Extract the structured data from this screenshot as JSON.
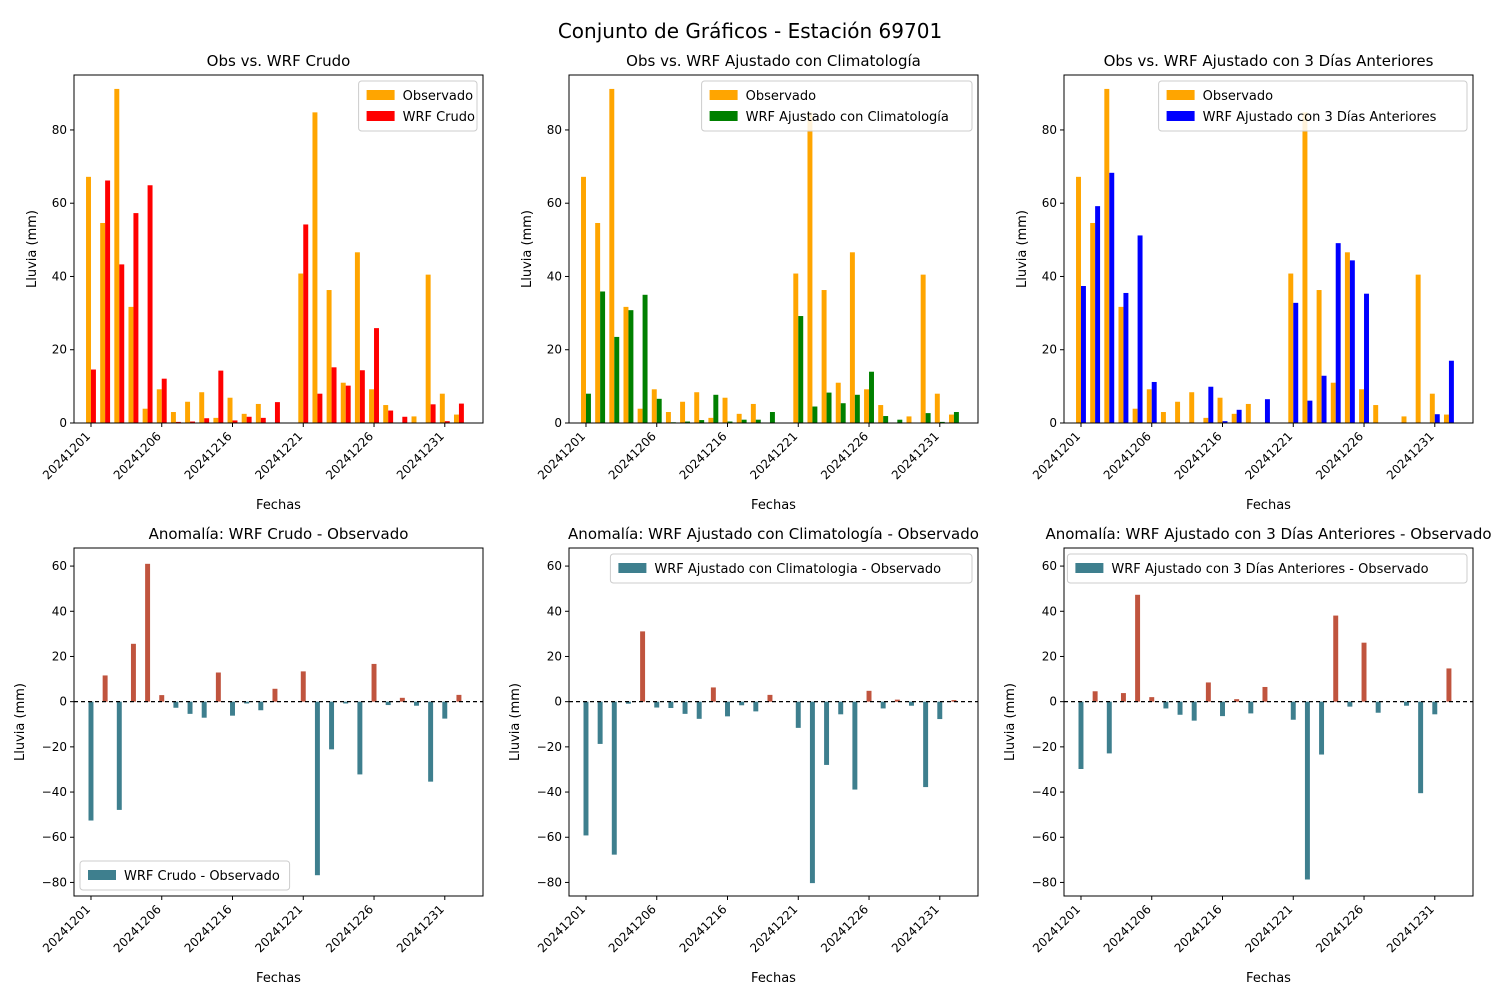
{
  "figure": {
    "suptitle": "Conjunto de Gráficos - Estación 69701"
  },
  "colors": {
    "observed": "#FFA500",
    "wrf_crudo": "#FF0000",
    "wrf_clim": "#008000",
    "wrf_3dias": "#0000FF",
    "anom_negative": "#3E7F8E",
    "anom_positive": "#C0543E"
  },
  "chart_data": [
    {
      "type": "bar",
      "title": "Obs vs. WRF Crudo",
      "xlabel": "Fechas",
      "ylabel": "Lluvia (mm)",
      "ylim": [
        0,
        95
      ],
      "yticks": [
        0,
        20,
        40,
        60,
        80
      ],
      "x_ticks": [
        "20241201",
        "20241206",
        "20241216",
        "20241221",
        "20241226",
        "20241231"
      ],
      "legend_position": "upper right",
      "series": [
        {
          "name": "Observado",
          "color": "#FFA500",
          "values": [
            67.2,
            54.6,
            91.2,
            31.7,
            3.9,
            9.2,
            3.0,
            5.8,
            8.4,
            1.4,
            6.9,
            2.5,
            5.2,
            0,
            0,
            40.8,
            84.8,
            36.3,
            11.0,
            46.6,
            9.2,
            4.9,
            0,
            1.8,
            40.5,
            8.0,
            2.3
          ]
        },
        {
          "name": "WRF Crudo",
          "color": "#FF0000",
          "values": [
            14.6,
            66.2,
            43.3,
            57.3,
            64.9,
            12.1,
            0.3,
            0.4,
            1.3,
            14.3,
            0.7,
            1.7,
            1.4,
            5.7,
            0,
            54.2,
            8.0,
            15.2,
            10.2,
            14.4,
            25.9,
            3.4,
            1.7,
            0,
            5.1,
            0.5,
            5.3
          ]
        }
      ]
    },
    {
      "type": "bar",
      "title": "Obs vs. WRF Ajustado con Climatología",
      "xlabel": "Fechas",
      "ylabel": "Lluvia (mm)",
      "ylim": [
        0,
        95
      ],
      "yticks": [
        0,
        20,
        40,
        60,
        80
      ],
      "x_ticks": [
        "20241201",
        "20241206",
        "20241216",
        "20241221",
        "20241226",
        "20241231"
      ],
      "legend_position": "upper right",
      "series": [
        {
          "name": "Observado",
          "color": "#FFA500",
          "values": [
            67.2,
            54.6,
            91.2,
            31.7,
            3.9,
            9.2,
            3.0,
            5.8,
            8.4,
            1.4,
            6.9,
            2.5,
            5.2,
            0,
            0,
            40.8,
            84.8,
            36.3,
            11.0,
            46.6,
            9.2,
            4.9,
            0,
            1.8,
            40.5,
            8.0,
            2.3
          ]
        },
        {
          "name": "WRF Ajustado con Climatología",
          "color": "#008000",
          "values": [
            8.0,
            35.9,
            23.5,
            30.8,
            35.0,
            6.6,
            0.2,
            0.4,
            0.8,
            7.7,
            0.4,
            0.9,
            0.9,
            3.0,
            0,
            29.2,
            4.5,
            8.3,
            5.4,
            7.7,
            14.0,
            1.9,
            0.9,
            0,
            2.7,
            0.3,
            3.0
          ]
        }
      ]
    },
    {
      "type": "bar",
      "title": "Obs vs. WRF Ajustado con 3 Días Anteriores",
      "xlabel": "Fechas",
      "ylabel": "Lluvia (mm)",
      "ylim": [
        0,
        95
      ],
      "yticks": [
        0,
        20,
        40,
        60,
        80
      ],
      "x_ticks": [
        "20241201",
        "20241206",
        "20241216",
        "20241221",
        "20241226",
        "20241231"
      ],
      "legend_position": "upper right",
      "series": [
        {
          "name": "Observado",
          "color": "#FFA500",
          "values": [
            67.2,
            54.6,
            91.2,
            31.7,
            3.9,
            9.2,
            3.0,
            5.8,
            8.4,
            1.4,
            6.9,
            2.5,
            5.2,
            0,
            0,
            40.8,
            84.8,
            36.3,
            11.0,
            46.6,
            9.2,
            4.9,
            0,
            1.8,
            40.5,
            8.0,
            2.3
          ]
        },
        {
          "name": "WRF Ajustado con 3 Días Anteriores",
          "color": "#0000FF",
          "values": [
            37.4,
            59.2,
            68.3,
            35.5,
            51.2,
            11.2,
            0,
            0,
            0,
            9.9,
            0.5,
            3.6,
            0,
            6.5,
            0,
            32.8,
            6.1,
            12.9,
            49.1,
            44.4,
            35.3,
            0,
            0,
            0,
            0,
            2.4,
            17.0
          ]
        }
      ]
    },
    {
      "type": "bar",
      "title": "Anomalía: WRF Crudo - Observado",
      "xlabel": "Fechas",
      "ylabel": "Lluvia (mm)",
      "ylim": [
        -86,
        68
      ],
      "yticks": [
        -80,
        -60,
        -40,
        -20,
        0,
        20,
        40,
        60
      ],
      "x_ticks": [
        "20241201",
        "20241206",
        "20241216",
        "20241221",
        "20241226",
        "20241231"
      ],
      "legend_position": "lower left",
      "zero_line": true,
      "series": [
        {
          "name": "WRF Crudo - Observado",
          "color": "#3E7F8E",
          "values": [
            -52.6,
            11.6,
            -47.9,
            25.6,
            61.0,
            2.9,
            -2.7,
            -5.4,
            -7.1,
            12.9,
            -6.2,
            -0.8,
            -3.8,
            5.7,
            0,
            13.4,
            -76.8,
            -21.1,
            -0.8,
            -32.2,
            16.7,
            -1.5,
            1.7,
            -1.8,
            -35.4,
            -7.5,
            3.0
          ]
        }
      ]
    },
    {
      "type": "bar",
      "title": "Anomalía: WRF Ajustado con Climatología - Observado",
      "xlabel": "Fechas",
      "ylabel": "Lluvia (mm)",
      "ylim": [
        -86,
        68
      ],
      "yticks": [
        -80,
        -60,
        -40,
        -20,
        0,
        20,
        40,
        60
      ],
      "x_ticks": [
        "20241201",
        "20241206",
        "20241216",
        "20241221",
        "20241226",
        "20241231"
      ],
      "legend_position": "upper right",
      "zero_line": true,
      "series": [
        {
          "name": "WRF Ajustado con Climatologia - Observado",
          "color": "#3E7F8E",
          "values": [
            -59.2,
            -18.7,
            -67.7,
            -0.9,
            31.1,
            -2.6,
            -2.8,
            -5.4,
            -7.6,
            6.3,
            -6.5,
            -1.6,
            -4.3,
            3.0,
            0,
            -11.6,
            -80.3,
            -28.0,
            -5.6,
            -38.9,
            4.8,
            -3.0,
            0.9,
            -1.8,
            -37.8,
            -7.7,
            0.7
          ]
        }
      ]
    },
    {
      "type": "bar",
      "title": "Anomalía: WRF Ajustado con 3 Días Anteriores - Observado",
      "xlabel": "Fechas",
      "ylabel": "Lluvia (mm)",
      "ylim": [
        -86,
        68
      ],
      "yticks": [
        -80,
        -60,
        -40,
        -20,
        0,
        20,
        40,
        60
      ],
      "x_ticks": [
        "20241201",
        "20241206",
        "20241216",
        "20241221",
        "20241226",
        "20241231"
      ],
      "legend_position": "upper right",
      "zero_line": true,
      "series": [
        {
          "name": "WRF Ajustado con 3 Días Anteriores - Observado",
          "color": "#3E7F8E",
          "values": [
            -29.8,
            4.6,
            -22.9,
            3.8,
            47.3,
            2.0,
            -3.0,
            -5.8,
            -8.4,
            8.5,
            -6.4,
            1.1,
            -5.2,
            6.5,
            0,
            -8.0,
            -78.7,
            -23.4,
            38.1,
            -2.2,
            26.1,
            -4.9,
            0,
            -1.8,
            -40.5,
            -5.6,
            14.7
          ]
        }
      ]
    }
  ]
}
